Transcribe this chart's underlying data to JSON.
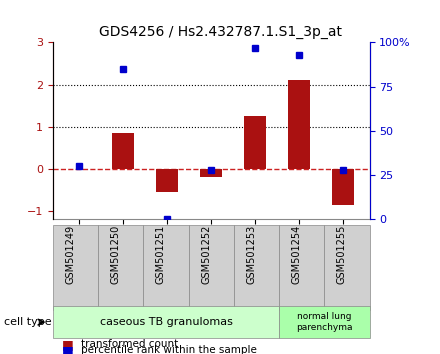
{
  "title": "GDS4256 / Hs2.432787.1.S1_3p_at",
  "samples": [
    "GSM501249",
    "GSM501250",
    "GSM501251",
    "GSM501252",
    "GSM501253",
    "GSM501254",
    "GSM501255"
  ],
  "transformed_count": [
    0.0,
    0.85,
    -0.55,
    -0.2,
    1.25,
    2.1,
    -0.85
  ],
  "percentile_rank": [
    30,
    85,
    0,
    28,
    97,
    93,
    28
  ],
  "ylim_left": [
    -1.2,
    3.0
  ],
  "ylim_right": [
    0,
    100
  ],
  "bar_color": "#aa1111",
  "dot_color": "#0000cc",
  "zero_line_color": "#cc2222",
  "dotted_line_color": "#000000",
  "group1_label": "caseous TB granulomas",
  "group2_label": "normal lung\nparenchyma",
  "group1_count": 5,
  "group2_count": 2,
  "cell_type_label": "cell type",
  "legend_bar_label": "transformed count",
  "legend_dot_label": "percentile rank within the sample",
  "group1_color": "#ccffcc",
  "group2_color": "#aaffaa"
}
